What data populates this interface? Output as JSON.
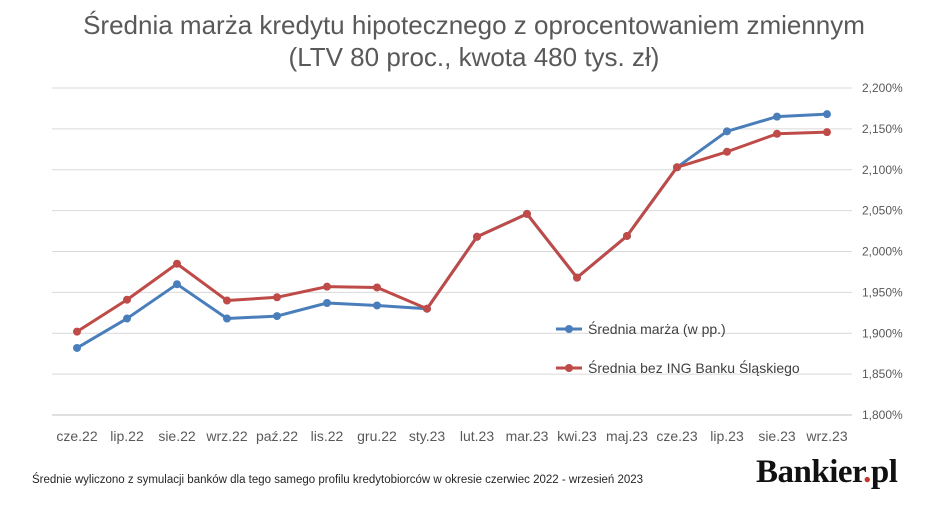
{
  "chart_data": {
    "type": "line",
    "title": "Średnia marża kredytu hipotecznego z oprocentowaniem zmiennym",
    "subtitle": "(LTV 80 proc., kwota 480 tys. zł)",
    "categories": [
      "cze.22",
      "lip.22",
      "sie.22",
      "wrz.22",
      "paź.22",
      "lis.22",
      "gru.22",
      "sty.23",
      "lut.23",
      "mar.23",
      "kwi.23",
      "maj.23",
      "cze.23",
      "lip.23",
      "sie.23",
      "wrz.23"
    ],
    "yticks": [
      "1,800%",
      "1,850%",
      "1,900%",
      "1,950%",
      "2,000%",
      "2,050%",
      "2,100%",
      "2,150%",
      "2,200%"
    ],
    "ylim": [
      1.8,
      2.2
    ],
    "grid": true,
    "legend_position": "right-lower",
    "series": [
      {
        "name": "Średnia marża (w pp.)",
        "color": "#4a7ebb",
        "values": [
          1.882,
          1.918,
          1.96,
          1.918,
          1.921,
          1.937,
          1.934,
          1.93,
          2.018,
          2.046,
          1.968,
          2.019,
          2.103,
          2.147,
          2.165,
          2.168
        ]
      },
      {
        "name": "Średnia bez ING Banku Śląskiego",
        "color": "#be4b48",
        "values": [
          1.902,
          1.941,
          1.985,
          1.94,
          1.944,
          1.957,
          1.956,
          1.93,
          2.018,
          2.046,
          1.968,
          2.019,
          2.103,
          2.122,
          2.144,
          2.146
        ]
      }
    ]
  },
  "footnote": "Średnie wyliczono z symulacji banków dla tego samego profilu kredytobiorców w okresie czerwiec 2022 - wrzesień 2023",
  "brand": {
    "name": "Bankier",
    "dot": ".",
    "suffix": "pl"
  }
}
